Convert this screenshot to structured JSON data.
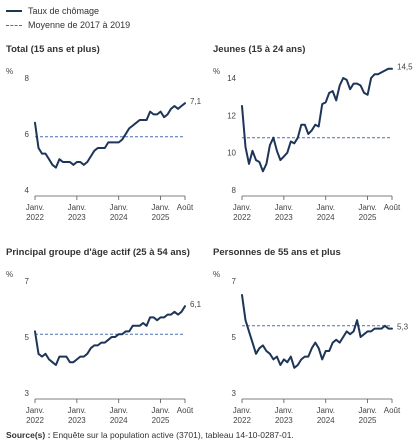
{
  "legend": {
    "series_label": "Taux de chômage",
    "baseline_label": "Moyenne de 2017 à 2019"
  },
  "colors": {
    "series": "#1d3557",
    "baseline": "#4a6fb3",
    "axis": "#555555"
  },
  "source": {
    "label": "Source(s) :",
    "text": "Enquête sur la population active (3701), tableau 14-10-0287-01."
  },
  "chart_data": [
    {
      "type": "line",
      "title": "Total (15 ans et plus)",
      "ylabel": "%",
      "ylim": [
        4,
        8
      ],
      "yticks": [
        "4",
        "6",
        "8"
      ],
      "xticks": [
        {
          "line1": "Janv.",
          "line2": "2022",
          "index": 0
        },
        {
          "line1": "Janv.",
          "line2": "2023",
          "index": 12
        },
        {
          "line1": "Janv.",
          "line2": "2024",
          "index": 24
        },
        {
          "line1": "Janv.",
          "line2": "2025",
          "index": 36
        },
        {
          "line1": "Août",
          "line2": "",
          "index": 43
        }
      ],
      "baseline": 5.9,
      "end_label": "7,1",
      "values": [
        6.4,
        5.5,
        5.3,
        5.3,
        5.1,
        4.9,
        4.8,
        5.1,
        5.0,
        5.0,
        5.0,
        4.9,
        5.0,
        5.0,
        4.9,
        5.0,
        5.2,
        5.4,
        5.5,
        5.5,
        5.5,
        5.7,
        5.7,
        5.7,
        5.7,
        5.8,
        6.0,
        6.2,
        6.3,
        6.4,
        6.5,
        6.5,
        6.5,
        6.8,
        6.7,
        6.7,
        6.8,
        6.6,
        6.7,
        6.9,
        7.0,
        6.9,
        7.0,
        7.1
      ]
    },
    {
      "type": "line",
      "title": "Jeunes (15 à 24 ans)",
      "ylabel": "%",
      "ylim": [
        8,
        14
      ],
      "yticks": [
        "8",
        "10",
        "12",
        "14"
      ],
      "xticks": [
        {
          "line1": "Janv.",
          "line2": "2022",
          "index": 0
        },
        {
          "line1": "Janv.",
          "line2": "2023",
          "index": 12
        },
        {
          "line1": "Janv.",
          "line2": "2024",
          "index": 24
        },
        {
          "line1": "Janv.",
          "line2": "2025",
          "index": 36
        },
        {
          "line1": "Août",
          "line2": "",
          "index": 43
        }
      ],
      "baseline": 10.8,
      "end_label": "14,5",
      "values": [
        12.5,
        10.3,
        9.4,
        10.1,
        9.6,
        9.5,
        9.0,
        9.4,
        10.4,
        10.8,
        10.1,
        9.6,
        9.8,
        10.0,
        10.6,
        10.5,
        10.8,
        11.5,
        11.5,
        11.0,
        11.2,
        11.5,
        11.4,
        12.6,
        12.7,
        13.2,
        13.3,
        12.8,
        13.6,
        14.0,
        13.9,
        13.4,
        13.7,
        13.7,
        13.6,
        13.2,
        13.1,
        14.0,
        14.2,
        14.2,
        14.3,
        14.4,
        14.5,
        14.5
      ]
    },
    {
      "type": "line",
      "title": "Principal groupe d'âge actif (25 à 54 ans)",
      "ylabel": "%",
      "ylim": [
        3,
        7
      ],
      "yticks": [
        "3",
        "5",
        "7"
      ],
      "xticks": [
        {
          "line1": "Janv.",
          "line2": "2022",
          "index": 0
        },
        {
          "line1": "Janv.",
          "line2": "2023",
          "index": 12
        },
        {
          "line1": "Janv.",
          "line2": "2024",
          "index": 24
        },
        {
          "line1": "Janv.",
          "line2": "2025",
          "index": 36
        },
        {
          "line1": "Août",
          "line2": "",
          "index": 43
        }
      ],
      "baseline": 5.1,
      "end_label": "6,1",
      "values": [
        5.2,
        4.4,
        4.3,
        4.4,
        4.2,
        4.1,
        4.0,
        4.3,
        4.3,
        4.3,
        4.1,
        4.1,
        4.2,
        4.3,
        4.3,
        4.4,
        4.6,
        4.7,
        4.7,
        4.8,
        4.8,
        4.9,
        5.0,
        5.0,
        5.1,
        5.1,
        5.2,
        5.2,
        5.4,
        5.4,
        5.4,
        5.5,
        5.4,
        5.7,
        5.7,
        5.6,
        5.7,
        5.7,
        5.8,
        5.8,
        5.9,
        5.8,
        5.9,
        6.1
      ]
    },
    {
      "type": "line",
      "title": "Personnes de 55 ans et plus",
      "ylabel": "%",
      "ylim": [
        3,
        7
      ],
      "yticks": [
        "3",
        "5",
        "7"
      ],
      "xticks": [
        {
          "line1": "Janv.",
          "line2": "2022",
          "index": 0
        },
        {
          "line1": "Janv.",
          "line2": "2023",
          "index": 12
        },
        {
          "line1": "Janv.",
          "line2": "2024",
          "index": 24
        },
        {
          "line1": "Janv.",
          "line2": "2025",
          "index": 36
        },
        {
          "line1": "Août",
          "line2": "",
          "index": 43
        }
      ],
      "baseline": 5.4,
      "end_label": "5,3",
      "values": [
        6.5,
        5.6,
        5.2,
        4.8,
        4.4,
        4.6,
        4.7,
        4.5,
        4.4,
        4.2,
        4.3,
        4.0,
        4.2,
        4.1,
        4.3,
        3.9,
        4.0,
        4.2,
        4.3,
        4.3,
        4.6,
        4.8,
        4.6,
        4.2,
        4.5,
        4.5,
        4.8,
        4.9,
        4.8,
        5.0,
        5.2,
        5.1,
        5.2,
        5.6,
        5.0,
        5.1,
        5.2,
        5.2,
        5.3,
        5.3,
        5.3,
        5.4,
        5.3,
        5.3
      ]
    }
  ]
}
